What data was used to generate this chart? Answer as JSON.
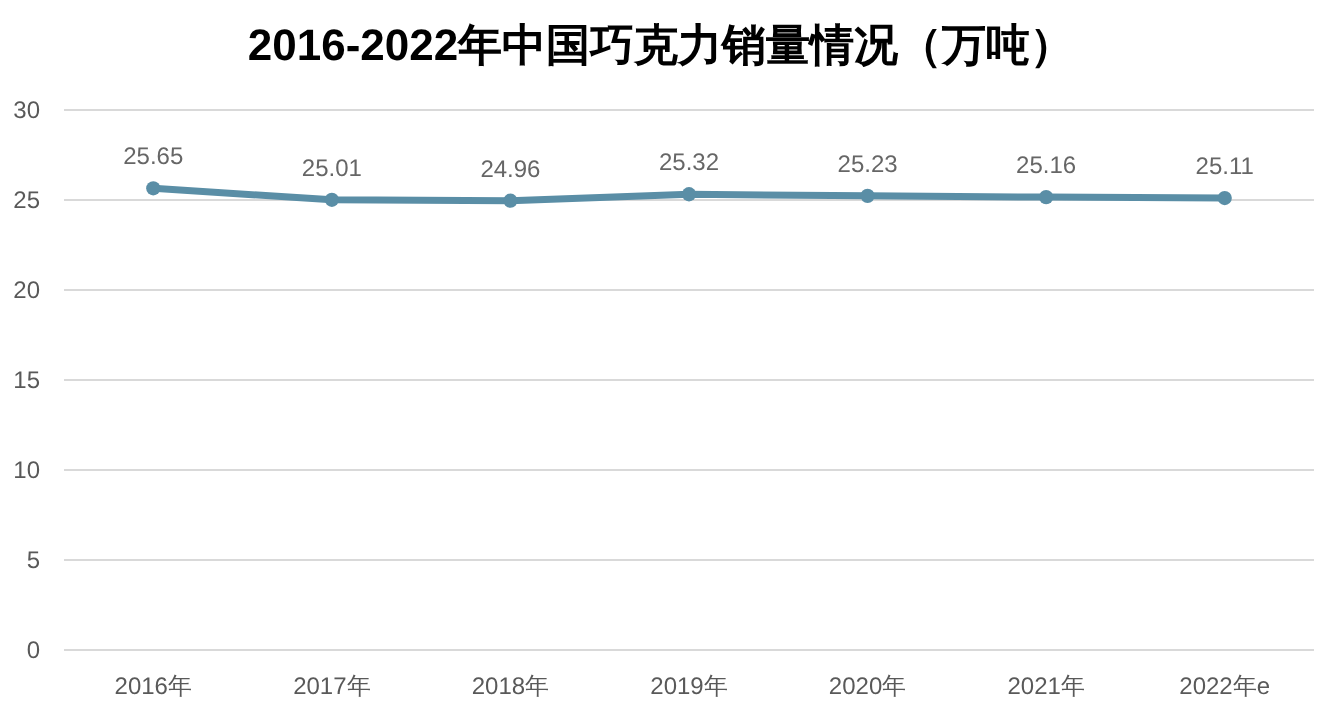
{
  "chart_data": {
    "type": "line",
    "title": "2016-2022年中国巧克力销量情况（万吨）",
    "categories": [
      "2016年",
      "2017年",
      "2018年",
      "2019年",
      "2020年",
      "2021年",
      "2022年e"
    ],
    "series": [
      {
        "color": "#5a8ea6",
        "values": [
          25.65,
          25.01,
          24.96,
          25.32,
          25.23,
          25.16,
          25.11
        ]
      }
    ],
    "ylim": [
      0,
      30
    ],
    "yticks": [
      0,
      5,
      10,
      15,
      20,
      25,
      30
    ],
    "grid": "y",
    "marker": "circle",
    "data_labels": true
  }
}
